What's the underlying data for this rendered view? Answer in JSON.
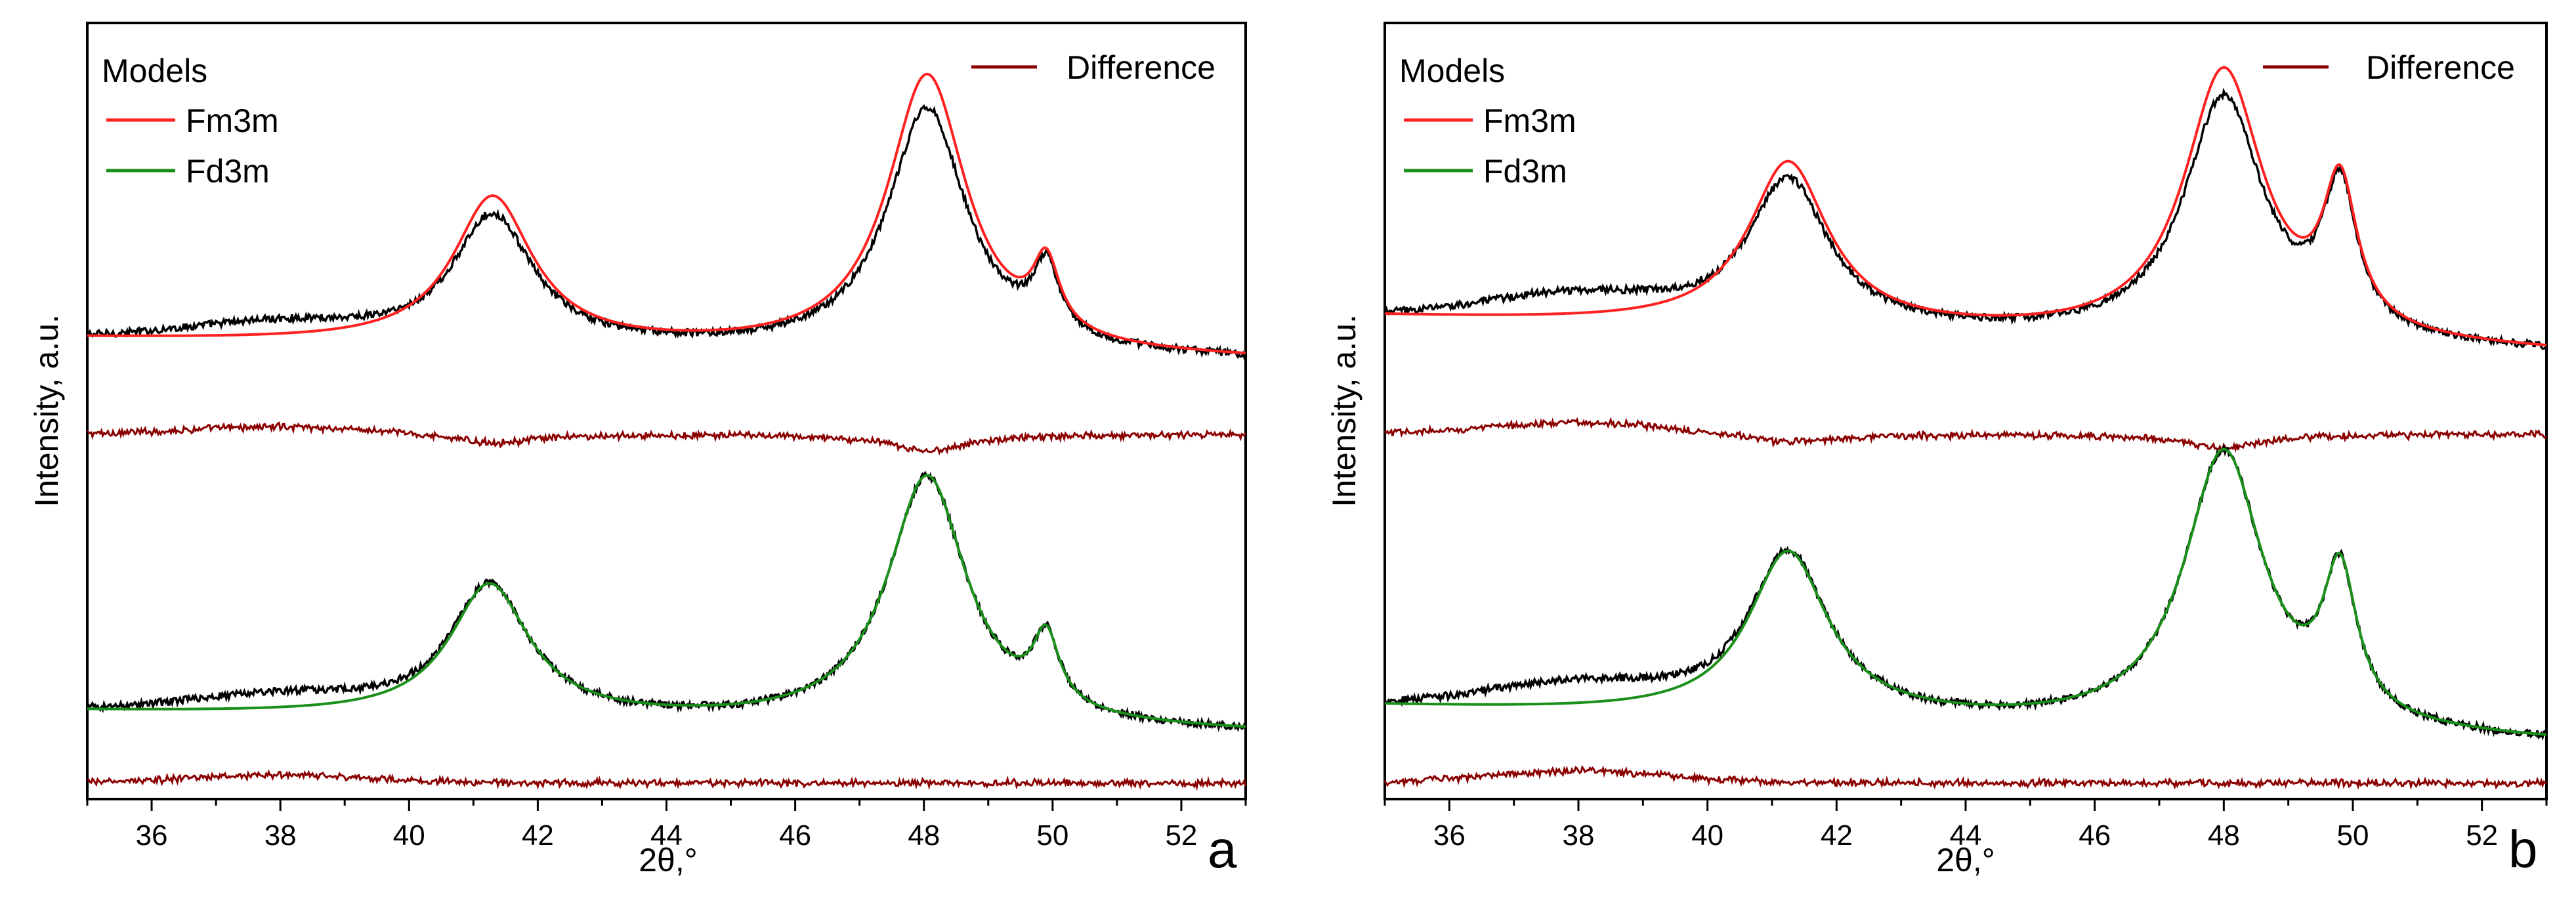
{
  "chart_data": [
    {
      "type": "line",
      "panel_label": "a",
      "xlabel": "2θ,°",
      "ylabel": "Intensity, a.u.",
      "xlim": [
        35,
        53
      ],
      "ylim": [
        0,
        1
      ],
      "x_ticks": [
        "36",
        "38",
        "40",
        "42",
        "44",
        "46",
        "48",
        "50",
        "52"
      ],
      "legend": {
        "title": "Models",
        "entries": [
          "Fm3m",
          "Fd3m"
        ],
        "difference_label": "Difference"
      },
      "colors": {
        "fit_fm3m": "#ff2020",
        "fit_fd3m": "#1a8f1a",
        "observed": "#000000",
        "difference": "#8b0000"
      },
      "series": [
        {
          "name": "Fm3m",
          "model": "fm3m",
          "baseline": 0.546,
          "peaks": [
            {
              "pos": 41.3,
              "h": 0.183,
              "w": 0.75
            },
            {
              "pos": 48.05,
              "h": 0.345,
              "w": 0.75
            },
            {
              "pos": 49.9,
              "h": 0.085,
              "w": 0.25
            }
          ],
          "bkg": {
            "pos": 38.0,
            "h": 0.02,
            "w": 2.0
          },
          "tilt": 0.0015,
          "obs_scale": 0.88
        },
        {
          "name": "Fd3m",
          "model": "fd3m",
          "baseline": 0.082,
          "peaks": [
            {
              "pos": 41.25,
              "h": 0.165,
              "w": 0.75
            },
            {
              "pos": 48.05,
              "h": 0.31,
              "w": 0.75
            },
            {
              "pos": 49.9,
              "h": 0.085,
              "w": 0.25
            }
          ],
          "bkg": {
            "pos": 38.0,
            "h": 0.02,
            "w": 2.0
          },
          "tilt": 0.0015,
          "obs_scale": 1.0
        }
      ],
      "difference_baselines": [
        0.5,
        0.05
      ]
    },
    {
      "type": "line",
      "panel_label": "b",
      "xlabel": "2θ,°",
      "ylabel": "Intensity, a.u.",
      "xlim": [
        35,
        53
      ],
      "ylim": [
        0,
        1
      ],
      "x_ticks": [
        "36",
        "38",
        "40",
        "42",
        "44",
        "46",
        "48",
        "50",
        "52"
      ],
      "legend": {
        "title": "Models",
        "entries": [
          "Fm3m",
          "Fd3m"
        ],
        "difference_label": "Difference"
      },
      "colors": {
        "fit_fm3m": "#ff2020",
        "fit_fd3m": "#1a8f1a",
        "observed": "#000000",
        "difference": "#8b0000"
      },
      "series": [
        {
          "name": "Fm3m",
          "model": "fm3m",
          "baseline": 0.555,
          "peaks": [
            {
              "pos": 41.25,
              "h": 0.205,
              "w": 0.75
            },
            {
              "pos": 48.0,
              "h": 0.335,
              "w": 0.75
            },
            {
              "pos": 49.8,
              "h": 0.175,
              "w": 0.32
            }
          ],
          "bkg": {
            "pos": 38.0,
            "h": 0.03,
            "w": 2.0
          },
          "tilt": 0.0025,
          "obs_scale": 0.9
        },
        {
          "name": "Fd3m",
          "model": "fd3m",
          "baseline": 0.07,
          "peaks": [
            {
              "pos": 41.25,
              "h": 0.205,
              "w": 0.75
            },
            {
              "pos": 48.0,
              "h": 0.345,
              "w": 0.75
            },
            {
              "pos": 49.8,
              "h": 0.175,
              "w": 0.32
            }
          ],
          "bkg": {
            "pos": 38.0,
            "h": 0.03,
            "w": 2.0
          },
          "tilt": 0.0025,
          "obs_scale": 1.0
        }
      ],
      "difference_baselines": [
        0.5,
        0.05
      ]
    }
  ]
}
